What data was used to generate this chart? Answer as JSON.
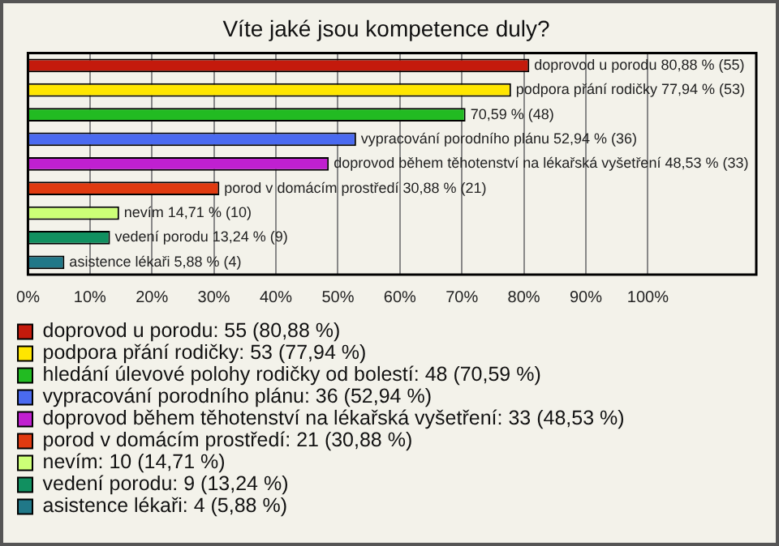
{
  "chart_data": {
    "type": "bar",
    "orientation": "horizontal",
    "title": "Víte jaké jsou kompetence duly?",
    "categories": [
      null,
      null,
      null,
      null,
      null,
      null,
      null,
      null,
      null
    ],
    "series": [
      {
        "name": "doprovod u porodu: 55 (80,88 %)",
        "color": "#c41a0c",
        "values": [
          80.88,
          null,
          null,
          null,
          null,
          null,
          null,
          null,
          null
        ],
        "value_labels": [
          "doprovod u porodu 80,88 % (55)",
          null,
          null,
          null,
          null,
          null,
          null,
          null,
          null
        ]
      },
      {
        "name": "podpora přání rodičky: 53 (77,94 %)",
        "color": "#ffe600",
        "values": [
          null,
          77.94,
          null,
          null,
          null,
          null,
          null,
          null,
          null
        ],
        "value_labels": [
          null,
          "podpora přání rodičky 77,94 % (53)",
          null,
          null,
          null,
          null,
          null,
          null,
          null
        ]
      },
      {
        "name": "hledání úlevové polohy rodičky od bolestí: 48 (70,59 %)",
        "color": "#22bb22",
        "values": [
          null,
          null,
          70.59,
          null,
          null,
          null,
          null,
          null,
          null
        ],
        "value_labels": [
          null,
          null,
          "70,59 % (48)",
          null,
          null,
          null,
          null,
          null,
          null
        ]
      },
      {
        "name": "vypracování porodního plánu: 36 (52,94 %)",
        "color": "#4a6af0",
        "values": [
          null,
          null,
          null,
          52.94,
          null,
          null,
          null,
          null,
          null
        ],
        "value_labels": [
          null,
          null,
          null,
          "vypracování porodního plánu 52,94 % (36)",
          null,
          null,
          null,
          null,
          null
        ]
      },
      {
        "name": "doprovod během těhotenství na lékařská vyšetření: 33 (48,53 %)",
        "color": "#c020d0",
        "values": [
          null,
          null,
          null,
          null,
          48.53,
          null,
          null,
          null,
          null
        ],
        "value_labels": [
          null,
          null,
          null,
          null,
          "doprovod během těhotenství na lékařská vyšetření 48,53 % (33)",
          null,
          null,
          null,
          null
        ]
      },
      {
        "name": "porod v domácím prostředí: 21 (30,88 %)",
        "color": "#e03a10",
        "values": [
          null,
          null,
          null,
          null,
          null,
          30.88,
          null,
          null,
          null
        ],
        "value_labels": [
          null,
          null,
          null,
          null,
          null,
          "porod v domácím prostředí 30,88 % (21)",
          null,
          null,
          null
        ]
      },
      {
        "name": "nevím: 10 (14,71 %)",
        "color": "#ccff77",
        "values": [
          null,
          null,
          null,
          null,
          null,
          null,
          14.71,
          null,
          null
        ],
        "value_labels": [
          null,
          null,
          null,
          null,
          null,
          null,
          "nevím 14,71 % (10)",
          null,
          null
        ]
      },
      {
        "name": "vedení porodu: 9 (13,24 %)",
        "color": "#119060",
        "values": [
          null,
          null,
          null,
          null,
          null,
          null,
          null,
          13.24,
          null
        ],
        "value_labels": [
          null,
          null,
          null,
          null,
          null,
          null,
          null,
          "vedení porodu 13,24 % (9)",
          null
        ]
      },
      {
        "name": "asistence lékaři: 4 (5,88 %)",
        "color": "#207888",
        "values": [
          null,
          null,
          null,
          null,
          null,
          null,
          null,
          null,
          5.88
        ],
        "value_labels": [
          null,
          null,
          null,
          null,
          null,
          null,
          null,
          null,
          "asistence lékaři 5,88 % (4)"
        ]
      }
    ],
    "xlim": [
      0,
      117.5
    ],
    "xticks": [
      {
        "value": 0,
        "label": "0%"
      },
      {
        "value": 10,
        "label": "10%"
      },
      {
        "value": 20,
        "label": "20%"
      },
      {
        "value": 30,
        "label": "30%"
      },
      {
        "value": 40,
        "label": "40%"
      },
      {
        "value": 50,
        "label": "50%"
      },
      {
        "value": 60,
        "label": "60%"
      },
      {
        "value": 70,
        "label": "70%"
      },
      {
        "value": 80,
        "label": "80%"
      },
      {
        "value": 90,
        "label": "90%"
      },
      {
        "value": 100,
        "label": "100%"
      }
    ],
    "grid": "x",
    "legend": "bottom",
    "tick_labels": "x"
  }
}
